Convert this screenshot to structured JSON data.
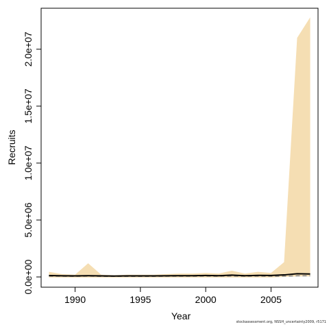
{
  "footer_credit": "stockassessment.org, NSSH_uncertainty2009, r5171",
  "colors": {
    "band": "#f5deb3",
    "median_line": "#000000",
    "dashed_line": "#808080"
  },
  "chart_data": {
    "type": "area",
    "title": "",
    "xlabel": "Year",
    "ylabel": "Recruits",
    "xlim": [
      1987.4,
      2008.6
    ],
    "ylim": [
      -900000,
      23600000
    ],
    "x_ticks": [
      1990,
      1995,
      2000,
      2005
    ],
    "x_tick_labels": [
      "1990",
      "1995",
      "2000",
      "2005"
    ],
    "y_ticks": [
      0,
      5000000,
      10000000,
      15000000,
      20000000
    ],
    "y_tick_labels": [
      "0.0e+00",
      "5.0e+06",
      "1.0e+07",
      "1.5e+07",
      "2.0e+07"
    ],
    "grid": false,
    "x": [
      1988,
      1989,
      1990,
      1991,
      1992,
      1993,
      1994,
      1995,
      1996,
      1997,
      1998,
      1999,
      2000,
      2001,
      2002,
      2003,
      2004,
      2005,
      2006,
      2007,
      2008
    ],
    "series": [
      {
        "role": "upper",
        "values": [
          450000,
          250000,
          200000,
          1200000,
          200000,
          150000,
          200000,
          200000,
          200000,
          250000,
          300000,
          300000,
          350000,
          300000,
          550000,
          300000,
          450000,
          350000,
          1300000,
          21000000,
          22800000
        ]
      },
      {
        "role": "lower",
        "values": [
          -50000,
          -50000,
          -50000,
          -50000,
          -50000,
          -50000,
          -50000,
          -50000,
          -50000,
          -50000,
          -50000,
          -50000,
          -50000,
          -50000,
          -50000,
          -50000,
          -50000,
          -50000,
          0,
          50000,
          50000
        ]
      },
      {
        "role": "median",
        "values": [
          120000,
          100000,
          90000,
          110000,
          90000,
          80000,
          90000,
          90000,
          90000,
          100000,
          110000,
          110000,
          130000,
          110000,
          160000,
          110000,
          140000,
          130000,
          180000,
          280000,
          260000
        ]
      },
      {
        "role": "dashed",
        "values": [
          70000,
          60000,
          50000,
          70000,
          50000,
          50000,
          50000,
          50000,
          50000,
          60000,
          60000,
          60000,
          70000,
          60000,
          80000,
          60000,
          70000,
          60000,
          70000,
          100000,
          100000
        ]
      }
    ]
  }
}
